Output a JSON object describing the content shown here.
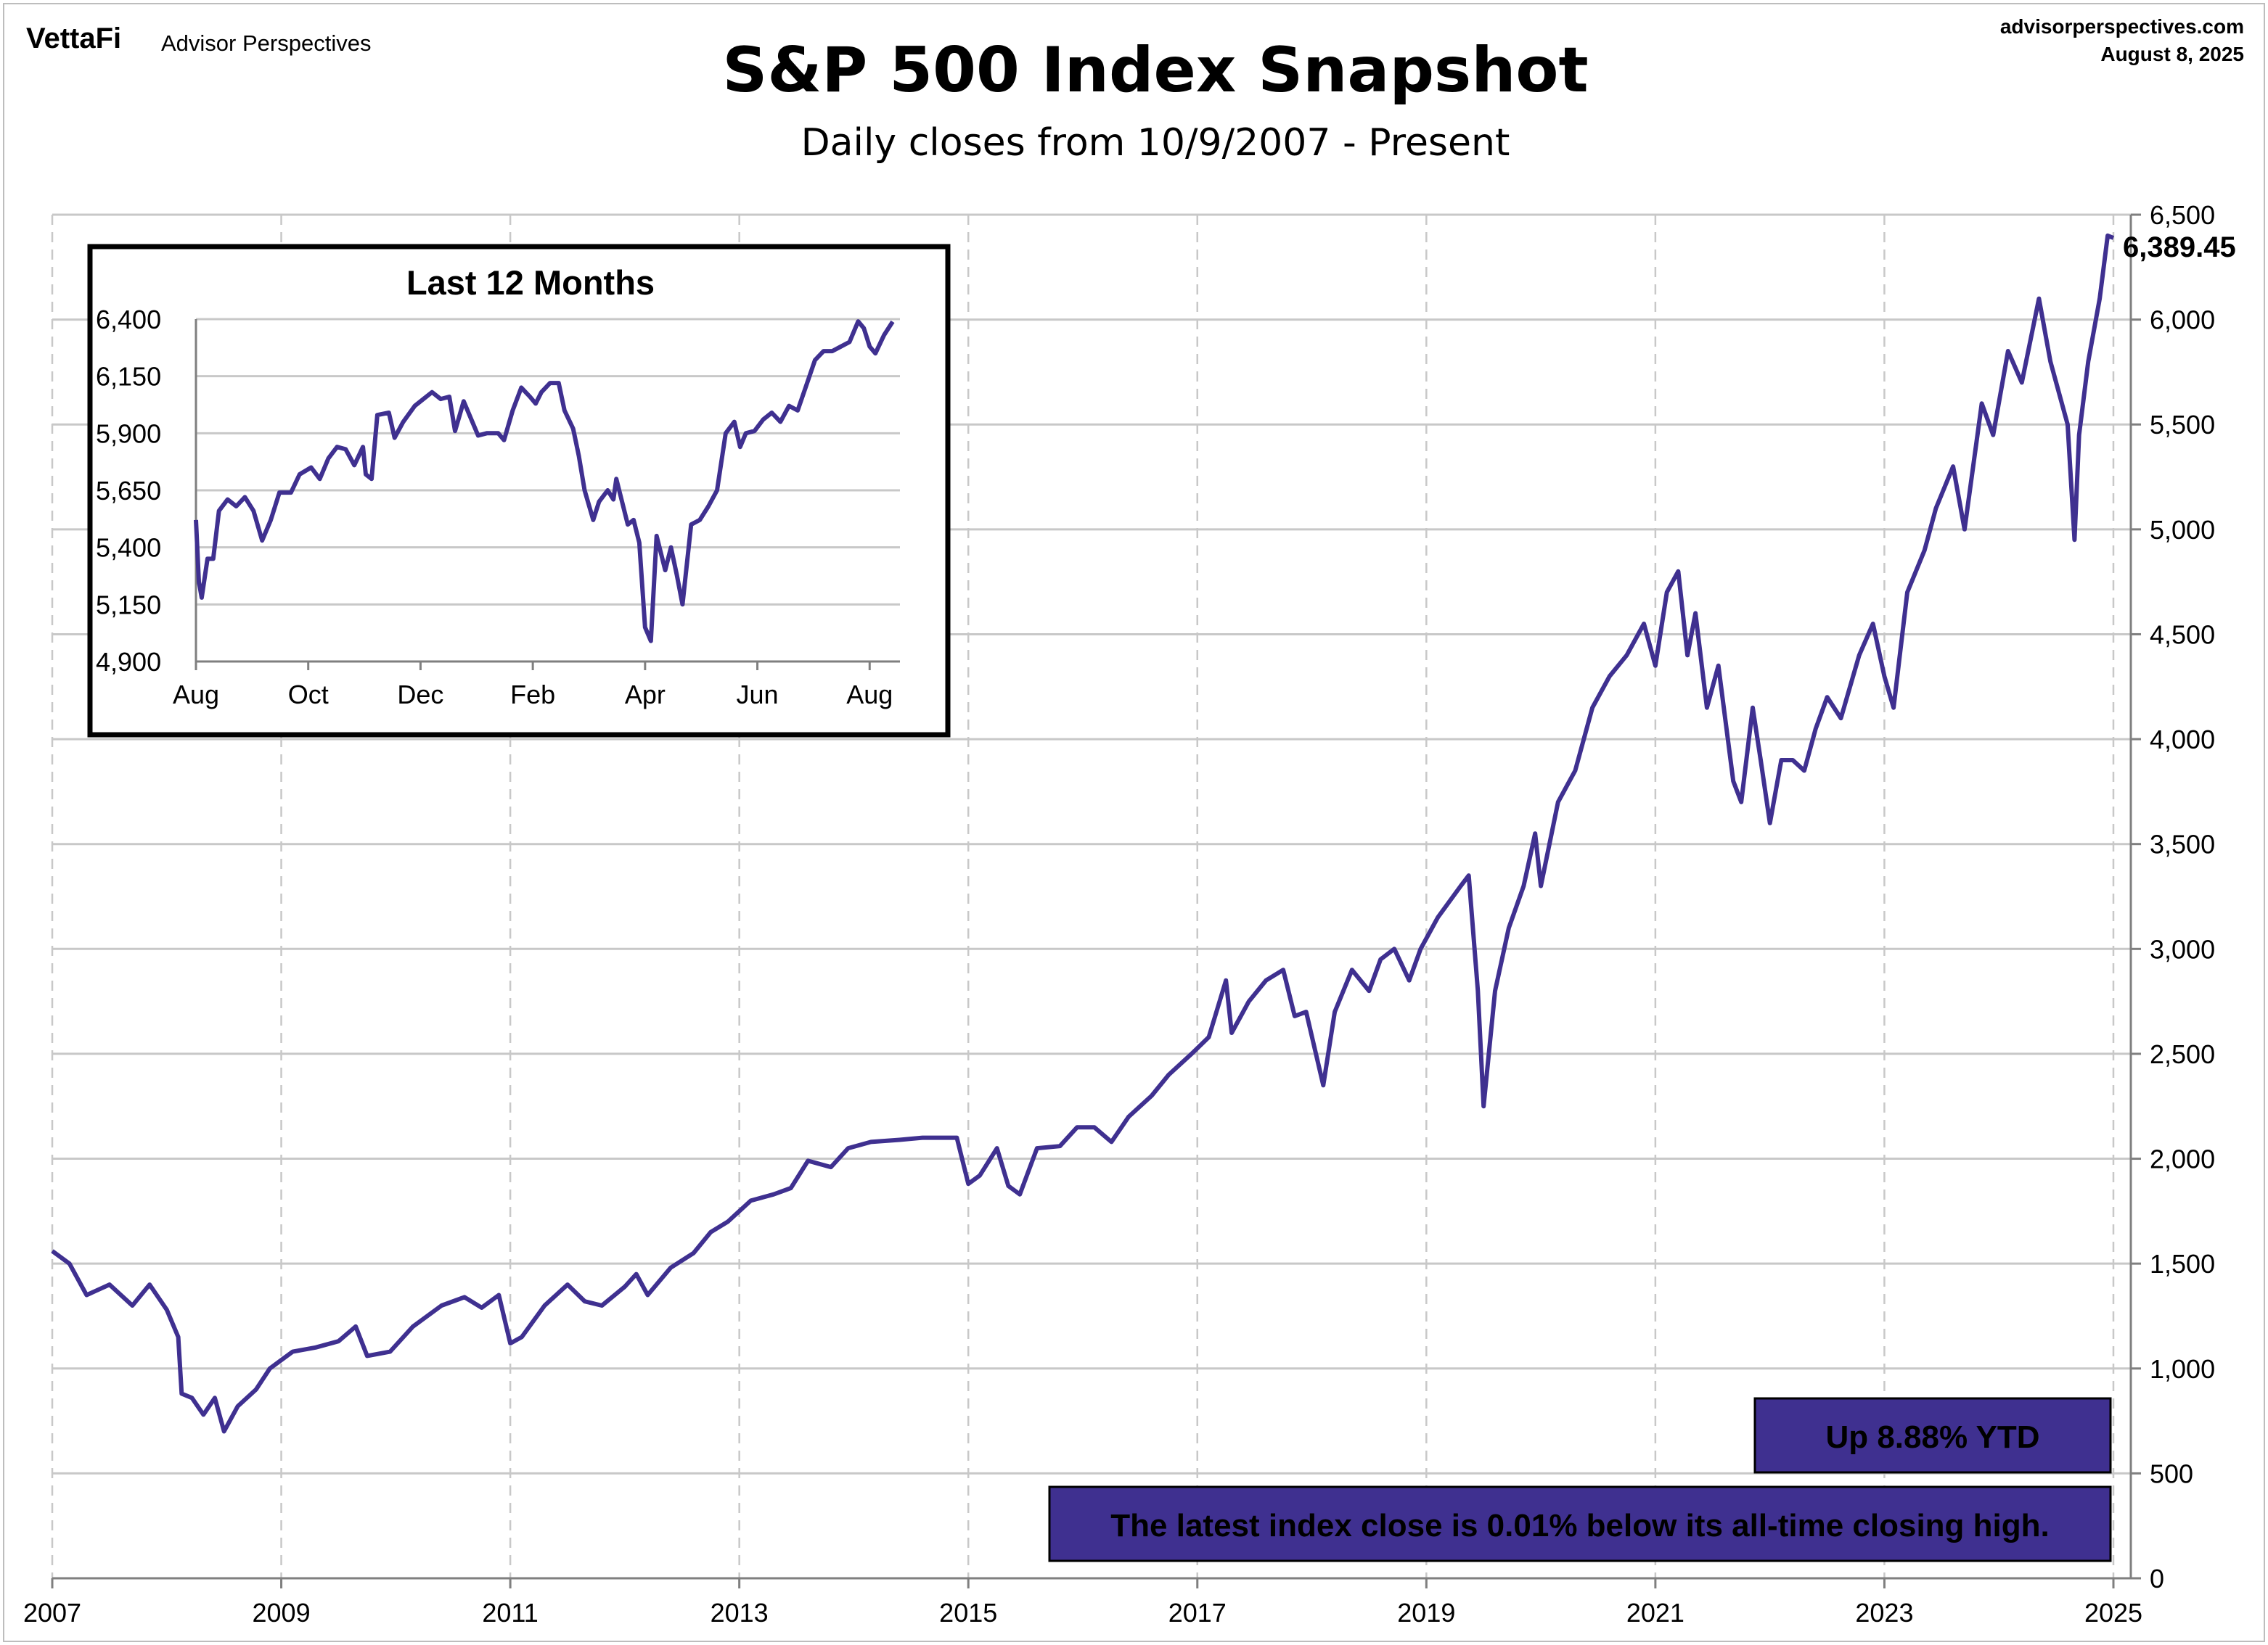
{
  "header": {
    "brand": "VettaFi",
    "brand_sub": "Advisor Perspectives",
    "site": "advisorperspectives.com",
    "date": "August 8, 2025",
    "title": "S&P 500 Index Snapshot",
    "subtitle": "Daily closes from 10/9/2007 - Present"
  },
  "colors": {
    "line": "#3f3090",
    "box_fill": "#3f3090",
    "grid": "#c8c8c8",
    "label": "#3f3090"
  },
  "chart_data": [
    {
      "type": "line",
      "title": "S&P 500 Index Snapshot",
      "subtitle": "Daily closes from 10/9/2007 - Present",
      "xlabel": "",
      "ylabel": "",
      "xlim": [
        2007,
        2025
      ],
      "ylim": [
        0,
        6500
      ],
      "x_ticks": [
        "2007",
        "2009",
        "2011",
        "2013",
        "2015",
        "2017",
        "2019",
        "2021",
        "2023",
        "2025"
      ],
      "y_ticks": [
        "0",
        "500",
        "1,000",
        "1,500",
        "2,000",
        "2,500",
        "3,000",
        "3,500",
        "4,000",
        "4,500",
        "5,000",
        "5,500",
        "6,000",
        "6,500"
      ],
      "grid": true,
      "last_value_label": "6,389.45",
      "series": [
        {
          "values": [
            [
              2007.0,
              1560
            ],
            [
              2007.15,
              1500
            ],
            [
              2007.3,
              1350
            ],
            [
              2007.5,
              1400
            ],
            [
              2007.7,
              1300
            ],
            [
              2007.85,
              1400
            ],
            [
              2008.0,
              1280
            ],
            [
              2008.1,
              1150
            ],
            [
              2008.13,
              880
            ],
            [
              2008.22,
              860
            ],
            [
              2008.32,
              780
            ],
            [
              2008.42,
              860
            ],
            [
              2008.5,
              700
            ],
            [
              2008.62,
              820
            ],
            [
              2008.78,
              900
            ],
            [
              2008.9,
              1000
            ],
            [
              2009.1,
              1080
            ],
            [
              2009.3,
              1100
            ],
            [
              2009.5,
              1130
            ],
            [
              2009.65,
              1200
            ],
            [
              2009.75,
              1060
            ],
            [
              2009.95,
              1080
            ],
            [
              2010.15,
              1200
            ],
            [
              2010.4,
              1300
            ],
            [
              2010.6,
              1340
            ],
            [
              2010.75,
              1290
            ],
            [
              2010.9,
              1350
            ],
            [
              2011.0,
              1120
            ],
            [
              2011.1,
              1150
            ],
            [
              2011.3,
              1300
            ],
            [
              2011.5,
              1400
            ],
            [
              2011.65,
              1320
            ],
            [
              2011.8,
              1300
            ],
            [
              2012.0,
              1390
            ],
            [
              2012.1,
              1450
            ],
            [
              2012.2,
              1350
            ],
            [
              2012.4,
              1480
            ],
            [
              2012.6,
              1550
            ],
            [
              2012.75,
              1650
            ],
            [
              2012.9,
              1700
            ],
            [
              2013.1,
              1800
            ],
            [
              2013.3,
              1830
            ],
            [
              2013.45,
              1860
            ],
            [
              2013.6,
              1990
            ],
            [
              2013.8,
              1960
            ],
            [
              2013.95,
              2050
            ],
            [
              2014.15,
              2080
            ],
            [
              2014.4,
              2090
            ],
            [
              2014.6,
              2100
            ],
            [
              2014.9,
              2100
            ],
            [
              2015.0,
              1880
            ],
            [
              2015.1,
              1920
            ],
            [
              2015.25,
              2050
            ],
            [
              2015.35,
              1870
            ],
            [
              2015.45,
              1830
            ],
            [
              2015.6,
              2050
            ],
            [
              2015.8,
              2060
            ],
            [
              2015.95,
              2150
            ],
            [
              2016.1,
              2150
            ],
            [
              2016.25,
              2080
            ],
            [
              2016.4,
              2200
            ],
            [
              2016.6,
              2300
            ],
            [
              2016.75,
              2400
            ],
            [
              2016.95,
              2500
            ],
            [
              2017.1,
              2580
            ],
            [
              2017.25,
              2850
            ],
            [
              2017.3,
              2600
            ],
            [
              2017.45,
              2750
            ],
            [
              2017.6,
              2850
            ],
            [
              2017.75,
              2900
            ],
            [
              2017.85,
              2680
            ],
            [
              2017.95,
              2700
            ],
            [
              2018.1,
              2350
            ],
            [
              2018.2,
              2700
            ],
            [
              2018.35,
              2900
            ],
            [
              2018.5,
              2800
            ],
            [
              2018.6,
              2950
            ],
            [
              2018.72,
              3000
            ],
            [
              2018.85,
              2850
            ],
            [
              2018.95,
              3000
            ],
            [
              2019.1,
              3150
            ],
            [
              2019.3,
              3300
            ],
            [
              2019.37,
              3350
            ],
            [
              2019.45,
              2800
            ],
            [
              2019.5,
              2250
            ],
            [
              2019.6,
              2800
            ],
            [
              2019.72,
              3100
            ],
            [
              2019.85,
              3300
            ],
            [
              2019.95,
              3550
            ],
            [
              2020.0,
              3300
            ],
            [
              2020.15,
              3700
            ],
            [
              2020.3,
              3850
            ],
            [
              2020.45,
              4150
            ],
            [
              2020.6,
              4300
            ],
            [
              2020.75,
              4400
            ],
            [
              2020.9,
              4550
            ],
            [
              2021.0,
              4350
            ],
            [
              2021.1,
              4700
            ],
            [
              2021.2,
              4800
            ],
            [
              2021.28,
              4400
            ],
            [
              2021.35,
              4600
            ],
            [
              2021.45,
              4150
            ],
            [
              2021.55,
              4350
            ],
            [
              2021.68,
              3800
            ],
            [
              2021.75,
              3700
            ],
            [
              2021.85,
              4150
            ],
            [
              2021.92,
              3900
            ],
            [
              2022.0,
              3600
            ],
            [
              2022.1,
              3900
            ],
            [
              2022.2,
              3900
            ],
            [
              2022.3,
              3850
            ],
            [
              2022.4,
              4050
            ],
            [
              2022.5,
              4200
            ],
            [
              2022.62,
              4100
            ],
            [
              2022.78,
              4400
            ],
            [
              2022.9,
              4550
            ],
            [
              2023.0,
              4300
            ],
            [
              2023.08,
              4150
            ],
            [
              2023.2,
              4700
            ],
            [
              2023.35,
              4900
            ],
            [
              2023.45,
              5100
            ],
            [
              2023.6,
              5300
            ],
            [
              2023.7,
              5000
            ],
            [
              2023.85,
              5600
            ],
            [
              2023.95,
              5450
            ],
            [
              2024.08,
              5850
            ],
            [
              2024.2,
              5700
            ],
            [
              2024.35,
              6100
            ],
            [
              2024.45,
              5800
            ],
            [
              2024.6,
              5500
            ],
            [
              2024.66,
              4950
            ],
            [
              2024.7,
              5450
            ],
            [
              2024.78,
              5800
            ],
            [
              2024.88,
              6100
            ],
            [
              2024.95,
              6400
            ],
            [
              2025.0,
              6389.45
            ]
          ]
        }
      ]
    },
    {
      "type": "line",
      "title": "Last 12 Months",
      "xlabel": "",
      "ylabel": "",
      "x_ticks": [
        "Aug",
        "Oct",
        "Dec",
        "Feb",
        "Apr",
        "Jun",
        "Aug"
      ],
      "y_ticks": [
        "4,900",
        "5,150",
        "5,400",
        "5,650",
        "5,900",
        "6,150",
        "6,400"
      ],
      "ylim": [
        4900,
        6400
      ],
      "grid": true,
      "series": [
        {
          "values": [
            [
              0,
              5520
            ],
            [
              2,
              5250
            ],
            [
              4,
              5180
            ],
            [
              8,
              5350
            ],
            [
              12,
              5350
            ],
            [
              16,
              5560
            ],
            [
              22,
              5610
            ],
            [
              28,
              5580
            ],
            [
              34,
              5620
            ],
            [
              40,
              5560
            ],
            [
              46,
              5430
            ],
            [
              52,
              5520
            ],
            [
              58,
              5640
            ],
            [
              66,
              5640
            ],
            [
              72,
              5720
            ],
            [
              80,
              5750
            ],
            [
              86,
              5700
            ],
            [
              92,
              5790
            ],
            [
              98,
              5840
            ],
            [
              104,
              5830
            ],
            [
              110,
              5760
            ],
            [
              116,
              5840
            ],
            [
              118,
              5720
            ],
            [
              122,
              5700
            ],
            [
              126,
              5980
            ],
            [
              134,
              5990
            ],
            [
              138,
              5880
            ],
            [
              144,
              5950
            ],
            [
              152,
              6020
            ],
            [
              158,
              6050
            ],
            [
              164,
              6080
            ],
            [
              170,
              6050
            ],
            [
              176,
              6060
            ],
            [
              180,
              5910
            ],
            [
              186,
              6040
            ],
            [
              192,
              5950
            ],
            [
              196,
              5890
            ],
            [
              202,
              5900
            ],
            [
              210,
              5900
            ],
            [
              214,
              5870
            ],
            [
              220,
              6000
            ],
            [
              226,
              6100
            ],
            [
              232,
              6060
            ],
            [
              236,
              6030
            ],
            [
              240,
              6080
            ],
            [
              246,
              6120
            ],
            [
              252,
              6120
            ],
            [
              256,
              6000
            ],
            [
              262,
              5920
            ],
            [
              266,
              5800
            ],
            [
              270,
              5650
            ],
            [
              276,
              5520
            ],
            [
              280,
              5600
            ],
            [
              286,
              5650
            ],
            [
              290,
              5610
            ],
            [
              292,
              5700
            ],
            [
              296,
              5600
            ],
            [
              300,
              5500
            ],
            [
              304,
              5520
            ],
            [
              308,
              5420
            ],
            [
              312,
              5050
            ],
            [
              316,
              4990
            ],
            [
              320,
              5450
            ],
            [
              326,
              5300
            ],
            [
              330,
              5400
            ],
            [
              334,
              5280
            ],
            [
              338,
              5150
            ],
            [
              344,
              5500
            ],
            [
              350,
              5520
            ],
            [
              356,
              5580
            ],
            [
              362,
              5650
            ],
            [
              368,
              5900
            ],
            [
              374,
              5950
            ],
            [
              378,
              5840
            ],
            [
              382,
              5900
            ],
            [
              388,
              5910
            ],
            [
              394,
              5960
            ],
            [
              400,
              5990
            ],
            [
              406,
              5950
            ],
            [
              412,
              6020
            ],
            [
              418,
              6000
            ],
            [
              424,
              6110
            ],
            [
              430,
              6220
            ],
            [
              436,
              6260
            ],
            [
              442,
              6260
            ],
            [
              448,
              6280
            ],
            [
              454,
              6300
            ],
            [
              460,
              6390
            ],
            [
              464,
              6360
            ],
            [
              468,
              6280
            ],
            [
              472,
              6250
            ],
            [
              478,
              6330
            ],
            [
              484,
              6389
            ]
          ]
        }
      ]
    }
  ],
  "annotations": {
    "ytd_box": "Up 8.88% YTD",
    "ath_box": "The latest index close is 0.01% below its all-time closing high."
  }
}
